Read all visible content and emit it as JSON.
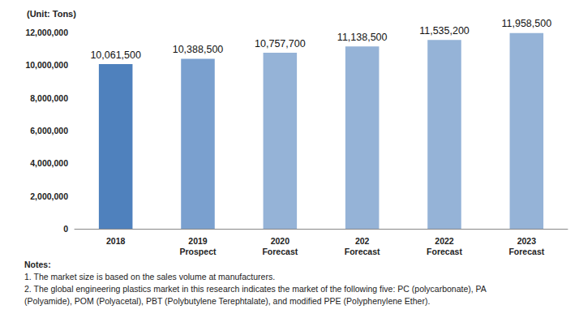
{
  "chart_data": {
    "type": "bar",
    "y_label": "(Unit: Tons)",
    "categories": [
      "2018",
      "2019\nProspect",
      "2020\nForecast",
      "202\nForecast",
      "2022\nForecast",
      "2023\nForecast"
    ],
    "values": [
      10061500,
      10388500,
      10757700,
      11138500,
      11535200,
      11958500
    ],
    "value_labels": [
      "10,061,500",
      "10,388,500",
      "10,757,700",
      "11,138,500",
      "11,535,200",
      "11,958,500"
    ],
    "colors": [
      "#4f81bd",
      "#7aa0cf",
      "#95b3d7",
      "#95b3d7",
      "#95b3d7",
      "#95b3d7"
    ],
    "ylim": [
      0,
      12000000
    ],
    "yticks": [
      0,
      {
        "value": 2000000,
        "label": "2,000,000"
      },
      {
        "value": 4000000,
        "label": "4,000,000"
      },
      {
        "value": 6000000,
        "label": "6,000,000"
      },
      {
        "value": 8000000,
        "label": "8,000,000"
      },
      {
        "value": 10000000,
        "label": "10,000,000"
      },
      {
        "value": 12000000,
        "label": "12,000,000"
      }
    ],
    "grid": false,
    "data_labels": true,
    "annotations": [
      "Notes:",
      "1. The market size is based on the sales volume at manufacturers.",
      "2. The global engineering plastics market in this research indicates the market of the following five: PC (polycarbonate), PA",
      "(Polyamide), POM (Polyacetal), PBT (Polybutylene Terephtalate), and modified PPE (Polyphenylene Ether)."
    ]
  }
}
